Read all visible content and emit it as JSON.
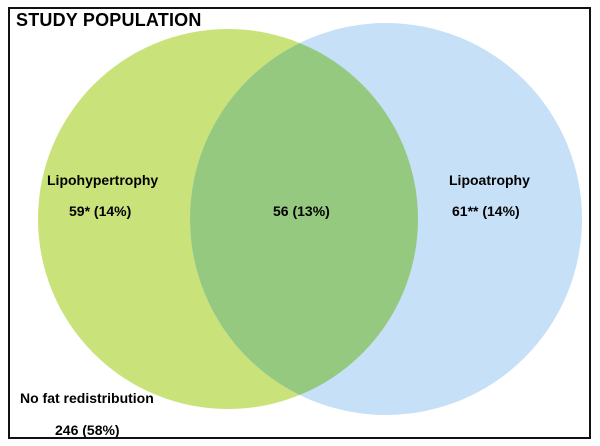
{
  "title": "STUDY POPULATION",
  "sets": [
    {
      "name": "Lipohypertrophy",
      "count_text": "59* (14%)",
      "color": "#c9e27a"
    },
    {
      "name": "Lipoatrophy",
      "count_text": "61** (14%)",
      "color": "#c6e0f7"
    }
  ],
  "intersection": {
    "count_text": "56 (13%)",
    "color": "#95c980"
  },
  "outside": {
    "name": "No fat redistribution",
    "count_text": "246 (58%)"
  },
  "colors": {
    "border": "#111111",
    "background": "#ffffff"
  }
}
